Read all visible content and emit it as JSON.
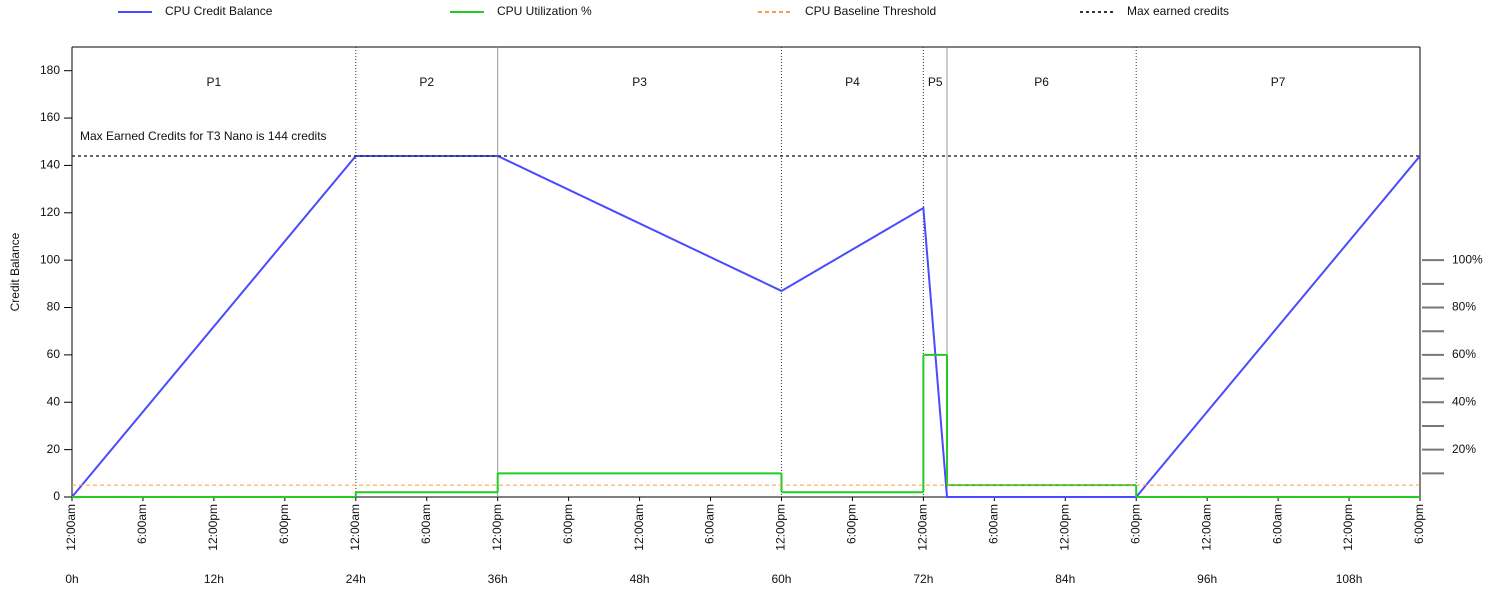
{
  "chart_data": {
    "type": "line",
    "y_label": "Credit Balance",
    "annotation": "Max Earned Credits for T3 Nano is 144 credits",
    "xlim": [
      0,
      114
    ],
    "ylim": [
      0,
      190
    ],
    "y2lim": [
      0,
      190
    ],
    "yticks": [
      0,
      20,
      40,
      60,
      80,
      100,
      120,
      140,
      160,
      180
    ],
    "y2ticks": [
      {
        "value": 20,
        "label": "20%"
      },
      {
        "value": 40,
        "label": "40%"
      },
      {
        "value": 60,
        "label": "60%"
      },
      {
        "value": 80,
        "label": "80%"
      },
      {
        "value": 100,
        "label": "100%"
      }
    ],
    "y2minor_ticks": [
      10,
      30,
      50,
      70,
      90
    ],
    "xticks": [
      {
        "value": 0,
        "label": "12:00am"
      },
      {
        "value": 6,
        "label": "6:00am"
      },
      {
        "value": 12,
        "label": "12:00pm"
      },
      {
        "value": 18,
        "label": "6:00pm"
      },
      {
        "value": 24,
        "label": "12:00am"
      },
      {
        "value": 30,
        "label": "6:00am"
      },
      {
        "value": 36,
        "label": "12:00pm"
      },
      {
        "value": 42,
        "label": "6:00pm"
      },
      {
        "value": 48,
        "label": "12:00am"
      },
      {
        "value": 54,
        "label": "6:00am"
      },
      {
        "value": 60,
        "label": "12:00pm"
      },
      {
        "value": 66,
        "label": "6:00pm"
      },
      {
        "value": 72,
        "label": "12:00am"
      },
      {
        "value": 78,
        "label": "6:00am"
      },
      {
        "value": 84,
        "label": "12:00pm"
      },
      {
        "value": 90,
        "label": "6:00pm"
      },
      {
        "value": 96,
        "label": "12:00am"
      },
      {
        "value": 102,
        "label": "6:00am"
      },
      {
        "value": 108,
        "label": "12:00pm"
      },
      {
        "value": 114,
        "label": "6:00pm"
      }
    ],
    "xticks2": [
      {
        "value": 0,
        "label": "0h"
      },
      {
        "value": 12,
        "label": "12h"
      },
      {
        "value": 24,
        "label": "24h"
      },
      {
        "value": 36,
        "label": "36h"
      },
      {
        "value": 48,
        "label": "48h"
      },
      {
        "value": 60,
        "label": "60h"
      },
      {
        "value": 72,
        "label": "72h"
      },
      {
        "value": 84,
        "label": "84h"
      },
      {
        "value": 96,
        "label": "96h"
      },
      {
        "value": 108,
        "label": "108h"
      }
    ],
    "periods": [
      {
        "label": "P1",
        "start": 0,
        "end": 24
      },
      {
        "label": "P2",
        "start": 24,
        "end": 36
      },
      {
        "label": "P3",
        "start": 36,
        "end": 60
      },
      {
        "label": "P4",
        "start": 60,
        "end": 72
      },
      {
        "label": "P5",
        "start": 72,
        "end": 74
      },
      {
        "label": "P6",
        "start": 74,
        "end": 90
      },
      {
        "label": "P7",
        "start": 90,
        "end": 114
      }
    ],
    "boundaries": [
      {
        "x": 24,
        "style": "dotted"
      },
      {
        "x": 36,
        "style": "solid"
      },
      {
        "x": 60,
        "style": "dotted"
      },
      {
        "x": 72,
        "style": "dotted"
      },
      {
        "x": 74,
        "style": "solid"
      },
      {
        "x": 90,
        "style": "dotted"
      }
    ],
    "series": [
      {
        "name": "CPU Credit Balance",
        "color": "#4a4aff",
        "kind": "line",
        "x": [
          0,
          24,
          36,
          60,
          72,
          74,
          90,
          114
        ],
        "values": [
          0,
          144,
          144,
          87,
          122,
          0,
          0,
          144
        ]
      },
      {
        "name": "CPU Utilization %",
        "color": "#22cc22",
        "kind": "step",
        "axis": "y2",
        "x": [
          0,
          24,
          36,
          60,
          72,
          74,
          90
        ],
        "values": [
          0,
          2,
          10,
          2,
          60,
          5,
          0
        ]
      },
      {
        "name": "CPU Baseline Threshold",
        "color": "#f5a04a",
        "kind": "hline",
        "axis": "y2",
        "value": 5,
        "dash": "4 3"
      },
      {
        "name": "Max earned credits",
        "color": "#333333",
        "kind": "hline",
        "value": 144,
        "dash": "3 3"
      }
    ]
  }
}
